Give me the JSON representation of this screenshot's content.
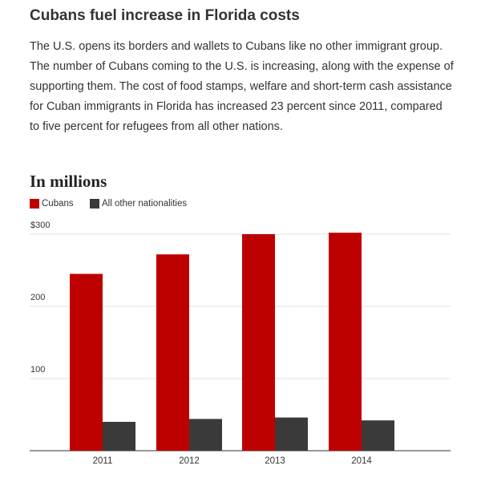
{
  "headline": "Cubans fuel increase in Florida costs",
  "intro": "The U.S. opens its borders and wallets to Cubans like no other immigrant group. The number of Cubans coming to the U.S. is increasing, along with the expense of supporting them. The cost of food stamps, welfare and short-term cash assistance for Cuban immigrants in Florida has increased 23 percent since 2011, compared to five percent for refugees from all other nations.",
  "chart_data": {
    "type": "bar",
    "title": "In millions",
    "categories": [
      "2011",
      "2012",
      "2013",
      "2014"
    ],
    "series": [
      {
        "name": "Cubans",
        "values": [
          245,
          272,
          300,
          302
        ],
        "color": "#bd0000"
      },
      {
        "name": "All other nationalities",
        "values": [
          40,
          44,
          46,
          42
        ],
        "color": "#3a3a3a"
      }
    ],
    "yticks": [
      "100",
      "200",
      "$300"
    ],
    "ytick_values": [
      100,
      200,
      300
    ],
    "ylim": [
      0,
      300
    ],
    "grid": true,
    "legend_position": "top-left"
  }
}
